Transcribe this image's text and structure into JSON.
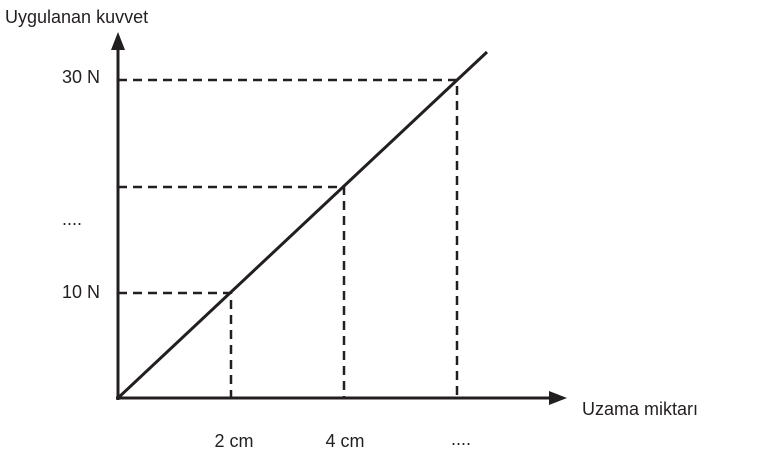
{
  "y_axis_label": "Uygulanan kuvvet",
  "x_axis_label": "Uzama miktarı",
  "y_ticks": [
    "30 N",
    "....",
    "10 N"
  ],
  "x_ticks": [
    "2 cm",
    "4 cm",
    "...."
  ]
}
